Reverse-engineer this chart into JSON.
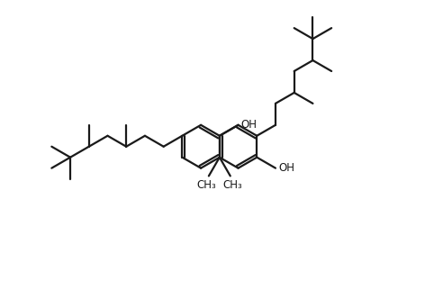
{
  "bg_color": "#ffffff",
  "line_color": "#1a1a1a",
  "line_width": 1.6,
  "font_size": 8.5,
  "fig_width": 4.92,
  "fig_height": 3.32,
  "dpi": 100,
  "xlim": [
    -1.0,
    9.5
  ],
  "ylim": [
    -0.8,
    6.8
  ]
}
